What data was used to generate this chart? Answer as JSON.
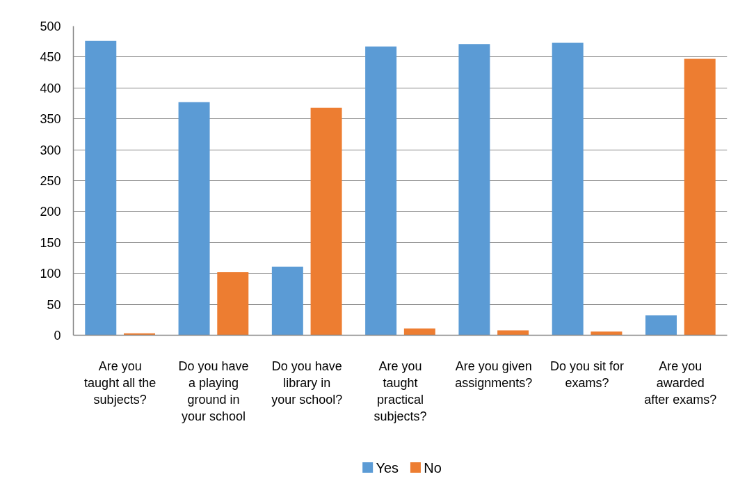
{
  "chart_data": {
    "type": "bar",
    "categories": [
      "Are you\ntaught all the\nsubjects?",
      "Do you have\na playing\nground in\nyour school",
      "Do you have\nlibrary in\nyour school?",
      "Are you\ntaught\npractical\nsubjects?",
      "Are you given\nassignments?",
      "Do you sit for\nexams?",
      "Are you\nawarded\nafter exams?"
    ],
    "series": [
      {
        "name": "Yes",
        "color": "#5b9bd5",
        "values": [
          476,
          377,
          111,
          467,
          471,
          473,
          32
        ]
      },
      {
        "name": "No",
        "color": "#ed7d31",
        "values": [
          3,
          102,
          368,
          11,
          8,
          6,
          447
        ]
      }
    ],
    "ylim": [
      0,
      500
    ],
    "yticks": [
      0,
      50,
      100,
      150,
      200,
      250,
      300,
      350,
      400,
      450,
      500
    ],
    "grid": "y",
    "legend": "bottom"
  }
}
